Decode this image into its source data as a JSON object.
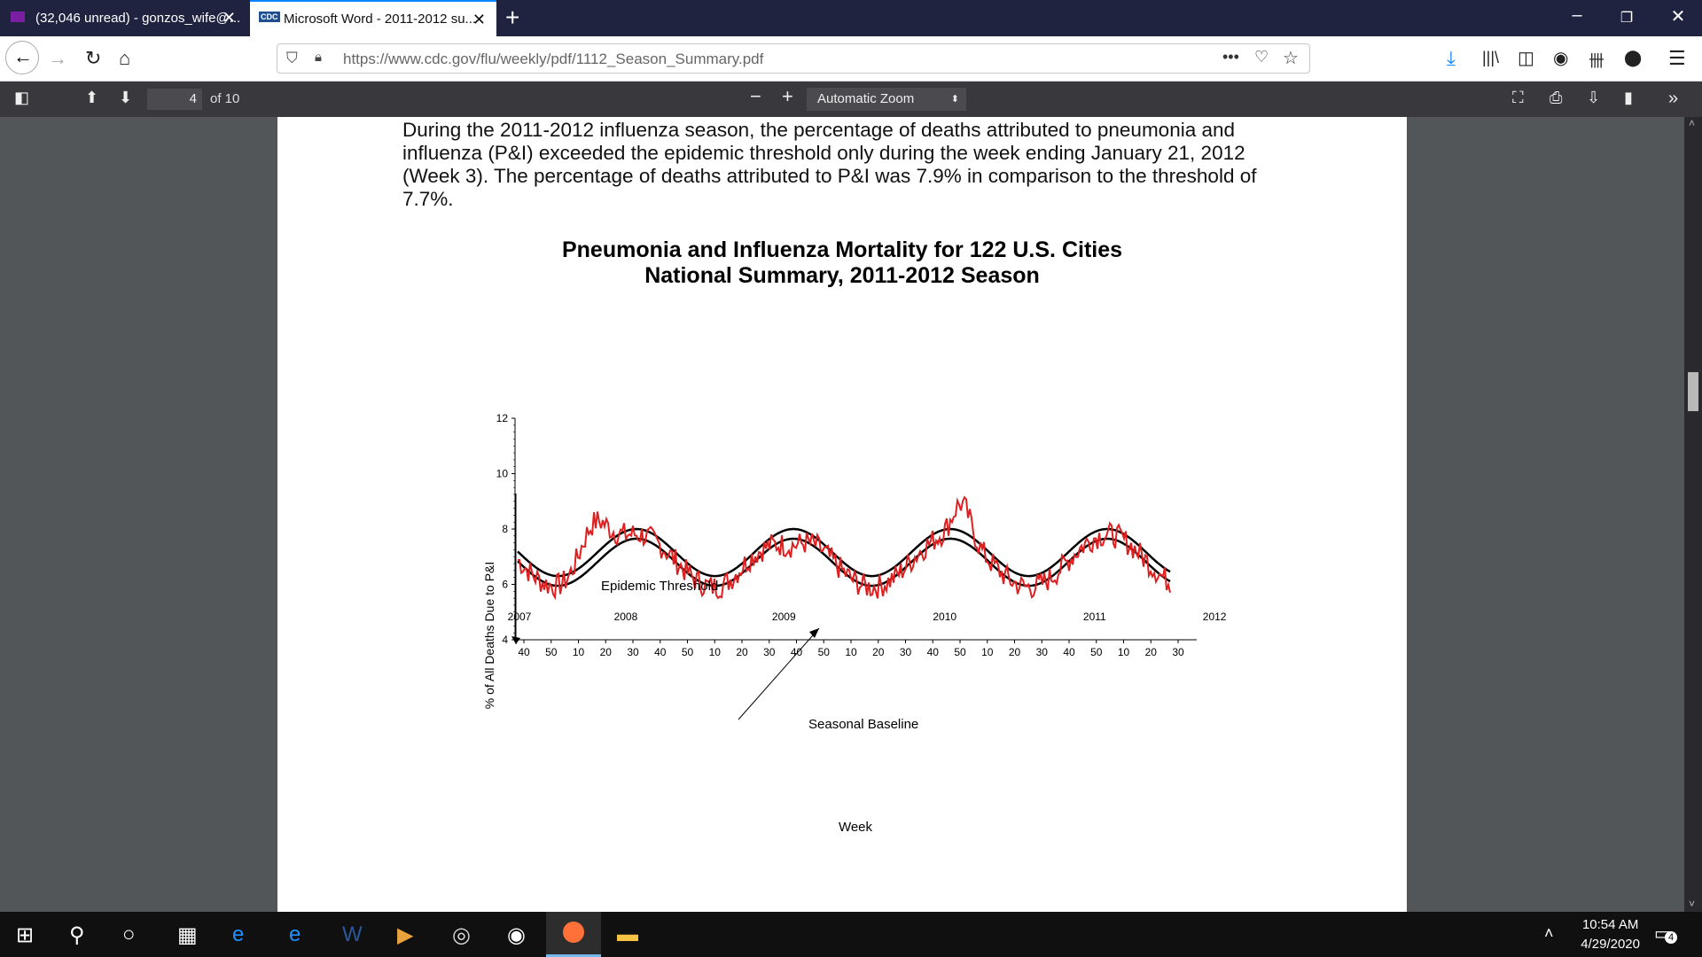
{
  "browser": {
    "tabs": [
      {
        "title": "(32,046 unread) - gonzos_wife@..."
      },
      {
        "title": "Microsoft Word - 2011-2012 su...",
        "favicon": "CDC"
      }
    ],
    "url": "https://www.cdc.gov/flu/weekly/pdf/1112_Season_Summary.pdf"
  },
  "pdf": {
    "page_current": "4",
    "page_total": "of 10",
    "zoom": "Automatic Zoom"
  },
  "document": {
    "paragraph": "During the 2011-2012 influenza season, the percentage of deaths attributed to pneumonia and influenza (P&I) exceeded the epidemic threshold only during the week ending January 21, 2012 (Week 3). The percentage of deaths attributed to P&I was 7.9% in comparison to the threshold of 7.7%.",
    "chart_title_1": "Pneumonia and Influenza Mortality for 122 U.S. Cities",
    "chart_title_2": "National Summary, 2011-2012 Season"
  },
  "chart_data": {
    "type": "line",
    "title": "Pneumonia and Influenza Mortality for 122 U.S. Cities National Summary, 2011-2012 Season",
    "xlabel": "Week",
    "ylabel": "% of All Deaths Due to P&I",
    "ylim": [
      4,
      12
    ],
    "yticks": [
      "4",
      "6",
      "8",
      "10",
      "12"
    ],
    "year_labels": [
      "2007",
      "2008",
      "2009",
      "2010",
      "2011",
      "2012"
    ],
    "week_ticks": [
      "40",
      "50",
      "10",
      "20",
      "30",
      "40",
      "50",
      "10",
      "20",
      "30",
      "40",
      "50",
      "10",
      "20",
      "30",
      "40",
      "50",
      "10",
      "20",
      "30",
      "40",
      "50",
      "10",
      "20",
      "30"
    ],
    "annotations": [
      "Epidemic Threshold",
      "Seasonal Baseline"
    ],
    "series": [
      {
        "name": "Epidemic Threshold",
        "color": "#000000",
        "description": "sinusoid approx 6.3 to 8.0"
      },
      {
        "name": "Seasonal Baseline",
        "color": "#000000",
        "description": "sinusoid approx 5.9 to 7.7"
      },
      {
        "name": "P&I",
        "color": "#e02020",
        "peaks": [
          {
            "label": "2008",
            "y": 9.1
          },
          {
            "label": "2010",
            "y": 9.1
          }
        ]
      }
    ]
  },
  "taskbar": {
    "time": "10:54 AM",
    "date": "4/29/2020",
    "notifications": "4"
  }
}
